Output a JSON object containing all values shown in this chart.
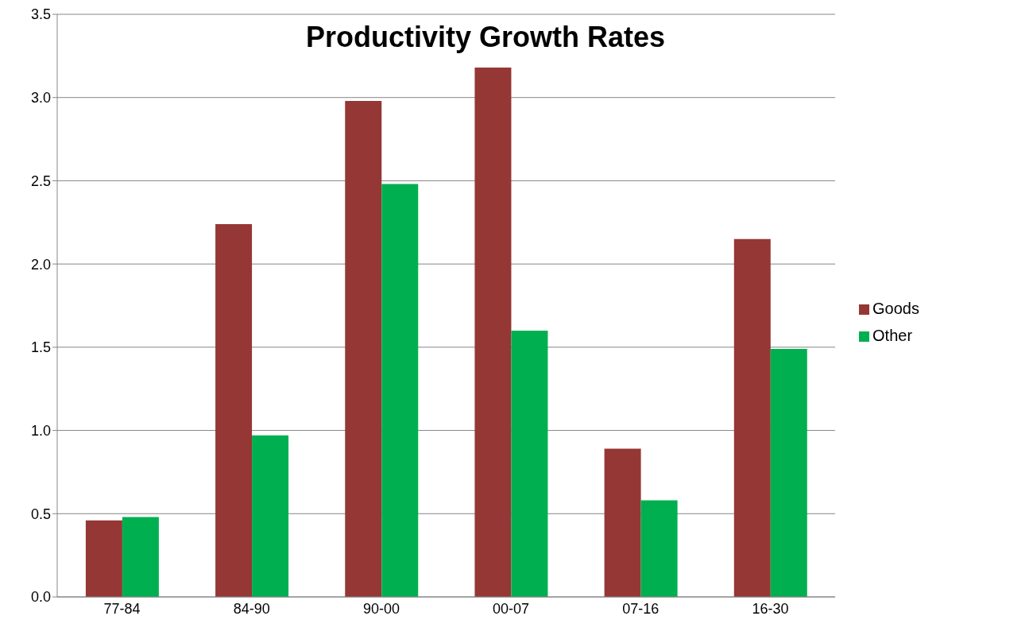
{
  "chart_data": {
    "type": "bar",
    "title": "Productivity Growth Rates",
    "categories": [
      "77-84",
      "84-90",
      "90-00",
      "00-07",
      "07-16",
      "16-30"
    ],
    "series": [
      {
        "name": "Goods",
        "color": "#953735",
        "values": [
          0.46,
          2.24,
          2.98,
          3.18,
          0.89,
          2.15
        ]
      },
      {
        "name": "Other",
        "color": "#00b050",
        "values": [
          0.48,
          0.97,
          2.48,
          1.6,
          0.58,
          1.49
        ]
      }
    ],
    "ylim": [
      0,
      3.5
    ],
    "yticks": [
      {
        "value": 0,
        "label": "0.0"
      },
      {
        "value": 0.5,
        "label": "0.5"
      },
      {
        "value": 1,
        "label": "1.0"
      },
      {
        "value": 1.5,
        "label": "1.5"
      },
      {
        "value": 2,
        "label": "2.0"
      },
      {
        "value": 2.5,
        "label": "2.5"
      },
      {
        "value": 3,
        "label": "3.0"
      },
      {
        "value": 3.5,
        "label": "3.5"
      }
    ],
    "grid": "y",
    "legend": "right"
  }
}
